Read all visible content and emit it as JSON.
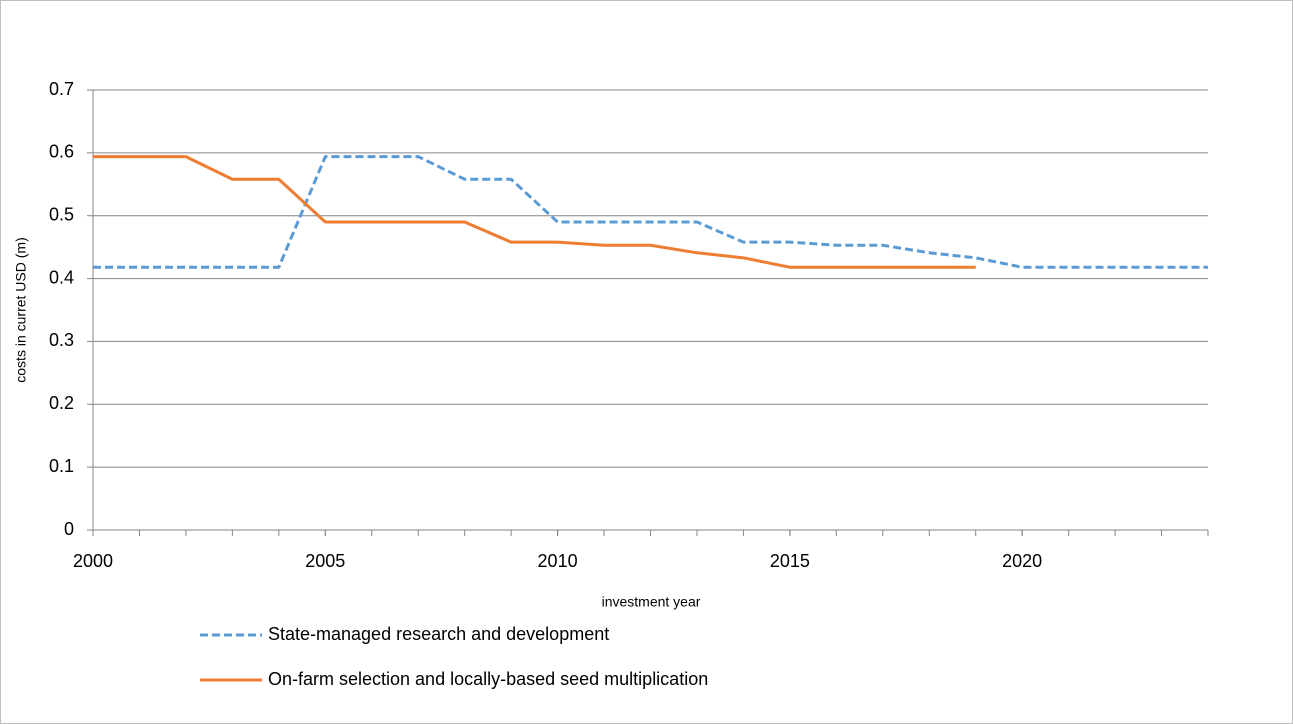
{
  "chart_data": {
    "type": "line",
    "xlabel": "investment year",
    "ylabel": "costs in curret USD (m)",
    "x": [
      2000,
      2001,
      2002,
      2003,
      2004,
      2005,
      2006,
      2007,
      2008,
      2009,
      2010,
      2011,
      2012,
      2013,
      2014,
      2015,
      2016,
      2017,
      2018,
      2019,
      2020,
      2021,
      2022,
      2023,
      2024
    ],
    "series": [
      {
        "name": "State-managed research and development",
        "color": "#5b9bd5",
        "line_style": "dashed",
        "values": [
          0.418,
          0.418,
          0.418,
          0.418,
          0.418,
          0.594,
          0.594,
          0.594,
          0.558,
          0.558,
          0.49,
          0.49,
          0.49,
          0.49,
          0.458,
          0.458,
          0.453,
          0.453,
          0.441,
          0.433,
          0.418,
          0.418,
          0.418,
          0.418,
          0.418
        ]
      },
      {
        "name": "On-farm selection and locally-based seed multiplication",
        "color": "#ed7d31",
        "line_style": "solid",
        "values": [
          0.594,
          0.594,
          0.594,
          0.558,
          0.558,
          0.49,
          0.49,
          0.49,
          0.49,
          0.458,
          0.458,
          0.453,
          0.453,
          0.441,
          0.433,
          0.418,
          0.418,
          0.418,
          0.418,
          0.418,
          null,
          null,
          null,
          null,
          null
        ]
      }
    ],
    "xlim": [
      2000,
      2024
    ],
    "xticks": [
      2000,
      2005,
      2010,
      2015,
      2020
    ],
    "ylim": [
      0,
      0.7
    ],
    "yticks": [
      0,
      0.1,
      0.2,
      0.3,
      0.4,
      0.5,
      0.6,
      0.7
    ],
    "grid": true,
    "legend": "bottom"
  }
}
